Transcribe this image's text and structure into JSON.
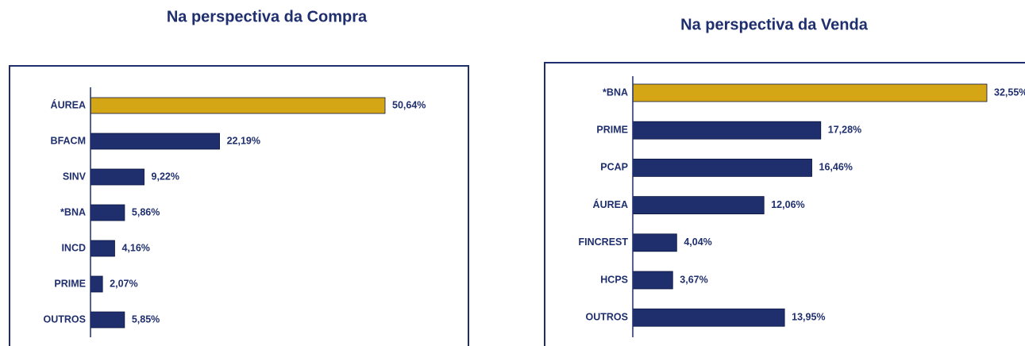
{
  "chart_data": [
    {
      "type": "barh",
      "title": "Na perspectiva da Compra",
      "categories": [
        "ÁUREA",
        "BFACM",
        "SINV",
        "*BNA",
        "INCD",
        "PRIME",
        "OUTROS"
      ],
      "values": [
        50.64,
        22.19,
        9.22,
        5.86,
        4.16,
        2.07,
        5.85
      ],
      "value_labels": [
        "50,64%",
        "22,19%",
        "9,22%",
        "5,86%",
        "4,16%",
        "2,07%",
        "5,85%"
      ],
      "colors": [
        "#d4a514",
        "#1f2f6e",
        "#1f2f6e",
        "#1f2f6e",
        "#1f2f6e",
        "#1f2f6e",
        "#1f2f6e"
      ]
    },
    {
      "type": "barh",
      "title": "Na perspectiva da Venda",
      "categories": [
        "*BNA",
        "PRIME",
        "PCAP",
        "ÁUREA",
        "FINCREST",
        "HCPS",
        "OUTROS"
      ],
      "values": [
        32.55,
        17.28,
        16.46,
        12.06,
        4.04,
        3.67,
        13.95
      ],
      "value_labels": [
        "32,55%",
        "17,28%",
        "16,46%",
        "12,06%",
        "4,04%",
        "3,67%",
        "13,95%"
      ],
      "colors": [
        "#d4a514",
        "#1f2f6e",
        "#1f2f6e",
        "#1f2f6e",
        "#1f2f6e",
        "#1f2f6e",
        "#1f2f6e"
      ]
    }
  ]
}
